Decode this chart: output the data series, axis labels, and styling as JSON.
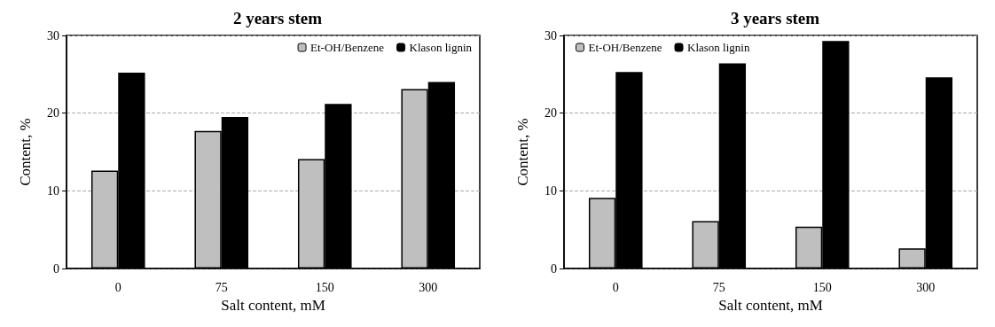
{
  "chart_data": [
    {
      "type": "bar",
      "title": "2 years stem",
      "xlabel": "Salt content, mM",
      "ylabel": "Content, %",
      "categories": [
        "0",
        "75",
        "150",
        "300"
      ],
      "series": [
        {
          "name": "Et-OH/Benzene",
          "color": "#bfbfbf",
          "values": [
            12.6,
            17.7,
            14.1,
            23.1
          ]
        },
        {
          "name": "Klason lignin",
          "color": "#000000",
          "values": [
            25.2,
            19.5,
            21.2,
            24.0
          ]
        }
      ],
      "ylim": [
        0,
        30
      ],
      "yticks": [
        0,
        10,
        20,
        30
      ],
      "grid": "y",
      "legend": "top right"
    },
    {
      "type": "bar",
      "title": "3 years stem",
      "xlabel": "Salt content, mM",
      "ylabel": "Content, %",
      "categories": [
        "0",
        "75",
        "150",
        "300"
      ],
      "series": [
        {
          "name": "Et-OH/Benzene",
          "color": "#bfbfbf",
          "values": [
            9.1,
            6.1,
            5.4,
            2.6
          ]
        },
        {
          "name": "Klason lignin",
          "color": "#000000",
          "values": [
            25.3,
            26.4,
            29.3,
            24.6
          ]
        }
      ],
      "ylim": [
        0,
        30
      ],
      "yticks": [
        0,
        10,
        20,
        30
      ],
      "grid": "y",
      "legend": "top left"
    }
  ]
}
